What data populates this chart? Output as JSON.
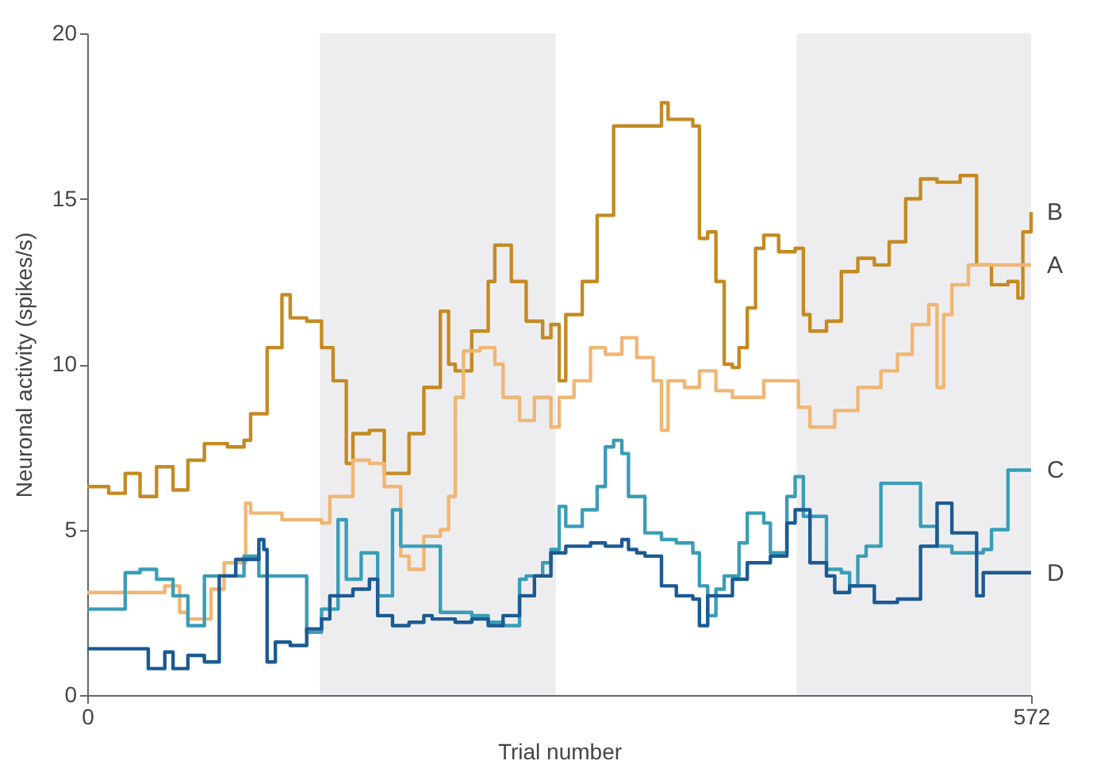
{
  "chart_data": {
    "type": "step",
    "xlabel": "Trial number",
    "ylabel": "Neuronal activity (spikes/s)",
    "xlim": [
      0,
      572
    ],
    "xticks": [
      0,
      572
    ],
    "ylim": [
      0,
      20
    ],
    "yticks": [
      0,
      5,
      10,
      15,
      20
    ],
    "grid": false,
    "legend": false,
    "bands": [
      {
        "axis": "x",
        "from": 141,
        "to": 284,
        "color": "#ededf0"
      },
      {
        "axis": "x",
        "from": 430,
        "to": 572,
        "color": "#ededf0"
      }
    ],
    "series": [
      {
        "name": "B",
        "color": "#c48a22",
        "x": [
          0,
          13,
          23,
          32,
          42,
          52,
          61,
          71,
          85,
          95,
          99,
          109,
          118,
          123,
          133,
          142,
          149,
          157,
          161,
          171,
          180,
          190,
          195,
          204,
          214,
          219,
          223,
          233,
          243,
          247,
          257,
          266,
          276,
          281,
          286,
          290,
          300,
          309,
          319,
          338,
          348,
          352,
          367,
          371,
          376,
          381,
          386,
          391,
          395,
          400,
          405,
          410,
          419,
          429,
          434,
          438,
          448,
          457,
          467,
          477,
          486,
          496,
          505,
          515,
          529,
          539,
          548,
          558,
          564,
          567,
          572
        ],
        "values": [
          6.3,
          6.1,
          6.7,
          6.0,
          6.9,
          6.2,
          7.1,
          7.6,
          7.5,
          7.7,
          8.5,
          10.5,
          12.1,
          11.4,
          11.3,
          10.5,
          9.5,
          7.0,
          7.9,
          8.0,
          6.7,
          6.7,
          7.9,
          9.3,
          11.6,
          10.0,
          9.8,
          11.0,
          12.5,
          13.6,
          12.5,
          11.3,
          10.8,
          11.2,
          9.5,
          11.5,
          12.5,
          14.5,
          17.2,
          17.2,
          17.9,
          17.4,
          17.2,
          13.8,
          14.0,
          12.5,
          10.0,
          9.9,
          10.5,
          11.7,
          13.5,
          13.9,
          13.4,
          13.5,
          11.5,
          11.0,
          11.3,
          12.8,
          13.2,
          13.0,
          13.7,
          15.0,
          15.6,
          15.5,
          15.7,
          13.0,
          12.4,
          12.5,
          12.0,
          14.0,
          14.6
        ]
      },
      {
        "name": "A",
        "color": "#f0b673",
        "x": [
          0,
          32,
          47,
          56,
          61,
          75,
          83,
          96,
          99,
          118,
          142,
          147,
          161,
          171,
          180,
          190,
          195,
          204,
          214,
          219,
          223,
          228,
          238,
          247,
          252,
          262,
          271,
          281,
          286,
          295,
          305,
          314,
          324,
          333,
          343,
          348,
          352,
          362,
          371,
          381,
          391,
          400,
          410,
          424,
          431,
          438,
          453,
          467,
          481,
          491,
          500,
          510,
          515,
          519,
          524,
          534,
          572
        ],
        "values": [
          3.1,
          3.1,
          3.3,
          2.5,
          2.3,
          3.2,
          4.0,
          5.8,
          5.5,
          5.3,
          5.2,
          6.0,
          7.1,
          7.0,
          6.3,
          4.2,
          3.8,
          4.8,
          5.0,
          6.0,
          9.0,
          10.4,
          10.5,
          10.0,
          9.0,
          8.3,
          9.0,
          8.1,
          9.0,
          9.5,
          10.5,
          10.3,
          10.8,
          10.2,
          9.5,
          8.0,
          9.5,
          9.3,
          9.8,
          9.2,
          9.0,
          9.0,
          9.5,
          9.5,
          8.7,
          8.1,
          8.6,
          9.3,
          9.8,
          10.3,
          11.2,
          11.8,
          9.3,
          11.5,
          12.4,
          13.0,
          13.0
        ]
      },
      {
        "name": "C",
        "color": "#3a9db7",
        "x": [
          0,
          18,
          23,
          32,
          42,
          52,
          61,
          71,
          85,
          95,
          104,
          118,
          133,
          142,
          152,
          157,
          166,
          176,
          185,
          190,
          204,
          214,
          233,
          243,
          252,
          262,
          266,
          271,
          276,
          281,
          286,
          290,
          300,
          309,
          314,
          319,
          324,
          328,
          338,
          348,
          357,
          367,
          371,
          376,
          381,
          386,
          395,
          400,
          410,
          414,
          424,
          429,
          434,
          448,
          457,
          462,
          467,
          472,
          481,
          500,
          505,
          515,
          524,
          543,
          548,
          558,
          572
        ],
        "values": [
          2.6,
          2.6,
          3.7,
          3.8,
          3.5,
          3.0,
          2.1,
          3.6,
          3.6,
          4.2,
          3.6,
          3.6,
          1.9,
          2.6,
          5.3,
          3.5,
          4.3,
          3.0,
          5.6,
          4.5,
          4.5,
          2.5,
          2.4,
          2.2,
          2.1,
          3.5,
          3.6,
          3.6,
          4.0,
          4.4,
          5.7,
          5.1,
          5.6,
          6.3,
          7.5,
          7.7,
          7.3,
          6.0,
          4.9,
          4.7,
          4.6,
          4.3,
          3.3,
          2.4,
          3.2,
          3.6,
          4.6,
          5.5,
          5.2,
          4.3,
          6.0,
          6.6,
          5.4,
          3.8,
          3.7,
          3.3,
          4.2,
          4.5,
          6.4,
          6.4,
          5.1,
          4.5,
          4.3,
          4.4,
          5.0,
          6.8,
          6.8
        ]
      },
      {
        "name": "D",
        "color": "#1c5a92",
        "x": [
          0,
          32,
          37,
          47,
          52,
          61,
          71,
          80,
          90,
          104,
          107,
          109,
          114,
          123,
          133,
          142,
          147,
          161,
          171,
          176,
          185,
          195,
          204,
          209,
          223,
          233,
          243,
          252,
          262,
          271,
          281,
          290,
          305,
          314,
          324,
          328,
          333,
          338,
          348,
          357,
          367,
          371,
          376,
          391,
          400,
          414,
          424,
          429,
          438,
          448,
          453,
          462,
          477,
          491,
          505,
          515,
          524,
          539,
          543,
          572
        ],
        "values": [
          1.4,
          1.4,
          0.8,
          1.3,
          0.8,
          1.2,
          1.0,
          3.6,
          4.1,
          4.7,
          4.4,
          1.0,
          1.6,
          1.5,
          2.0,
          2.3,
          3.0,
          3.2,
          3.5,
          2.4,
          2.1,
          2.2,
          2.4,
          2.3,
          2.2,
          2.3,
          2.1,
          2.4,
          3.0,
          3.6,
          4.3,
          4.5,
          4.6,
          4.5,
          4.7,
          4.4,
          4.3,
          4.2,
          3.3,
          3.0,
          2.9,
          2.1,
          3.0,
          3.5,
          4.0,
          4.2,
          5.2,
          5.6,
          4.0,
          3.6,
          3.1,
          3.3,
          2.8,
          2.9,
          4.5,
          5.8,
          4.9,
          3.0,
          3.7,
          3.7
        ]
      }
    ]
  }
}
